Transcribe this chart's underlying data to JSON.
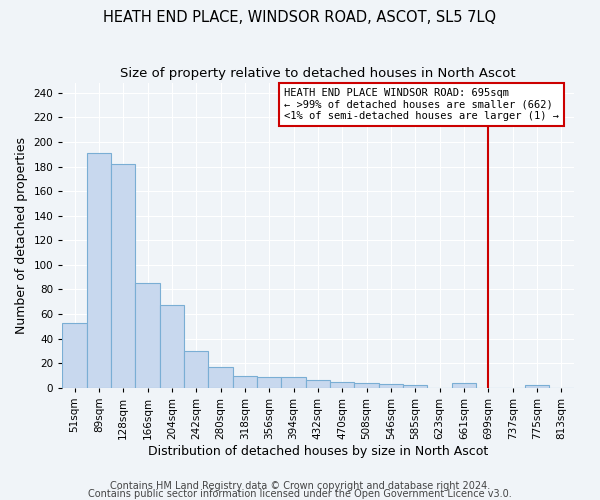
{
  "title": "HEATH END PLACE, WINDSOR ROAD, ASCOT, SL5 7LQ",
  "subtitle": "Size of property relative to detached houses in North Ascot",
  "xlabel": "Distribution of detached houses by size in North Ascot",
  "ylabel": "Number of detached properties",
  "bar_labels": [
    "51sqm",
    "89sqm",
    "128sqm",
    "166sqm",
    "204sqm",
    "242sqm",
    "280sqm",
    "318sqm",
    "356sqm",
    "394sqm",
    "432sqm",
    "470sqm",
    "508sqm",
    "546sqm",
    "585sqm",
    "623sqm",
    "661sqm",
    "699sqm",
    "737sqm",
    "775sqm",
    "813sqm"
  ],
  "bar_values": [
    53,
    191,
    182,
    85,
    67,
    30,
    17,
    10,
    9,
    9,
    6,
    5,
    4,
    3,
    2,
    0,
    4,
    0,
    0,
    2,
    0
  ],
  "bar_color": "#c8d8ee",
  "bar_edge_color": "#7aaed4",
  "background_color": "#f0f4f8",
  "grid_color": "#ffffff",
  "vline_color": "#cc0000",
  "annotation_text": "HEATH END PLACE WINDSOR ROAD: 695sqm\n← >99% of detached houses are smaller (662)\n<1% of semi-detached houses are larger (1) →",
  "annotation_box_color": "#ffffff",
  "annotation_border_color": "#cc0000",
  "ylim": [
    0,
    248
  ],
  "yticks": [
    0,
    20,
    40,
    60,
    80,
    100,
    120,
    140,
    160,
    180,
    200,
    220,
    240
  ],
  "footer1": "Contains HM Land Registry data © Crown copyright and database right 2024.",
  "footer2": "Contains public sector information licensed under the Open Government Licence v3.0.",
  "title_fontsize": 10.5,
  "subtitle_fontsize": 9.5,
  "axis_label_fontsize": 9,
  "tick_fontsize": 7.5,
  "annotation_fontsize": 7.5,
  "footer_fontsize": 7
}
